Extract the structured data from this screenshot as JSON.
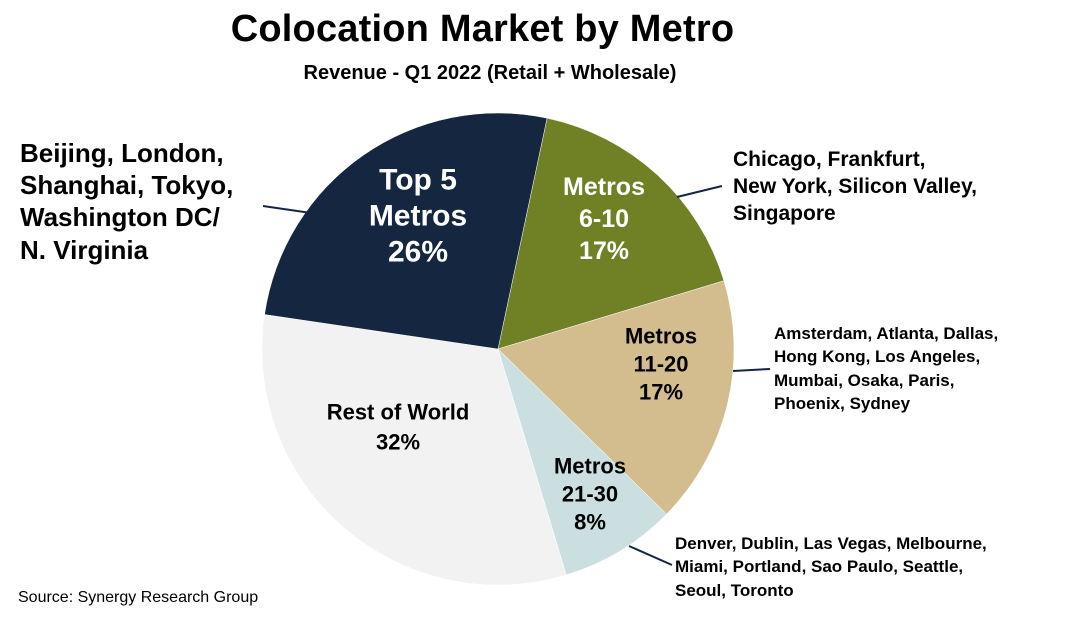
{
  "chart_data": {
    "type": "pie",
    "title": "Colocation Market by Metro",
    "subtitle": "Revenue - Q1 2022 (Retail + Wholesale)",
    "slices": [
      {
        "id": "top5",
        "lines": [
          "Top 5",
          "Metros",
          "26%"
        ],
        "value": 26,
        "color": "#142640",
        "text_color": "#ffffff",
        "annotation": [
          "Beijing, London,",
          "Shanghai, Tokyo,",
          "Washington DC/",
          "N. Virginia"
        ]
      },
      {
        "id": "m610",
        "lines": [
          "Metros",
          "6-10",
          "17%"
        ],
        "value": 17,
        "color": "#6f8025",
        "text_color": "#ffffff",
        "annotation": [
          "Chicago, Frankfurt,",
          "New York, Silicon Valley,",
          "Singapore"
        ]
      },
      {
        "id": "m1120",
        "lines": [
          "Metros",
          "11-20",
          "17%"
        ],
        "value": 17,
        "color": "#d3bd8e",
        "text_color": "#000000",
        "annotation": [
          "Amsterdam, Atlanta, Dallas,",
          "Hong Kong, Los Angeles,",
          "Mumbai, Osaka, Paris,",
          "Phoenix, Sydney"
        ]
      },
      {
        "id": "m2130",
        "lines": [
          "Metros",
          "21-30",
          "8%"
        ],
        "value": 8,
        "color": "#ccdfe0",
        "text_color": "#000000",
        "annotation": [
          "Denver, Dublin, Las Vegas, Melbourne,",
          "Miami, Portland, Sao Paulo, Seattle,",
          "Seoul, Toronto"
        ]
      },
      {
        "id": "row",
        "lines": [
          "Rest of World",
          "32%"
        ],
        "value": 32,
        "color": "#f2f2f2",
        "text_color": "#000000",
        "annotation": []
      }
    ]
  },
  "source": "Source: Synergy Research Group"
}
